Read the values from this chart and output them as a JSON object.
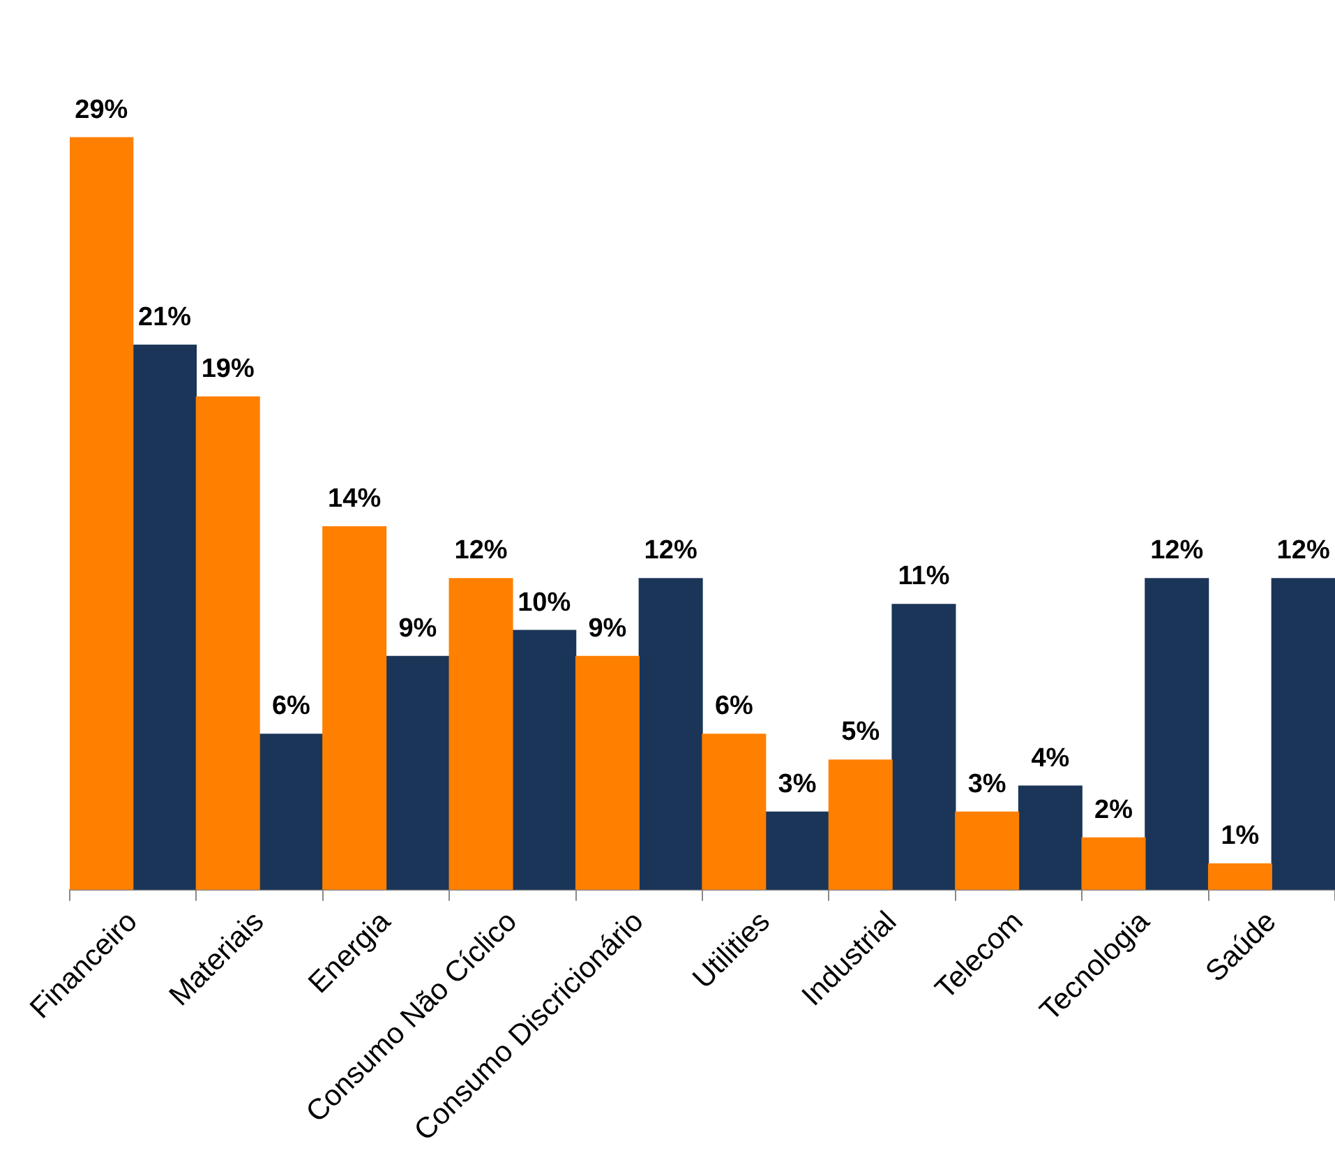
{
  "chart_data": {
    "type": "bar",
    "categories": [
      "Financeiro",
      "Materiais",
      "Energia",
      "Consumo Não Cíclico",
      "Consumo Discricionário",
      "Utilities",
      "Industrial",
      "Telecom",
      "Tecnologia",
      "Saúde"
    ],
    "series": [
      {
        "color": "#ff7f00",
        "values": [
          29,
          19,
          14,
          12,
          9,
          6,
          5,
          3,
          2,
          1
        ],
        "value_labels": [
          "29%",
          "19%",
          "14%",
          "12%",
          "9%",
          "6%",
          "5%",
          "3%",
          "2%",
          "1%"
        ]
      },
      {
        "color": "#1a3558",
        "values": [
          21,
          6,
          9,
          10,
          12,
          3,
          11,
          4,
          12,
          12
        ],
        "value_labels": [
          "21%",
          "6%",
          "9%",
          "10%",
          "12%",
          "3%",
          "11%",
          "4%",
          "12%",
          "12%"
        ]
      }
    ],
    "legend": false
  }
}
